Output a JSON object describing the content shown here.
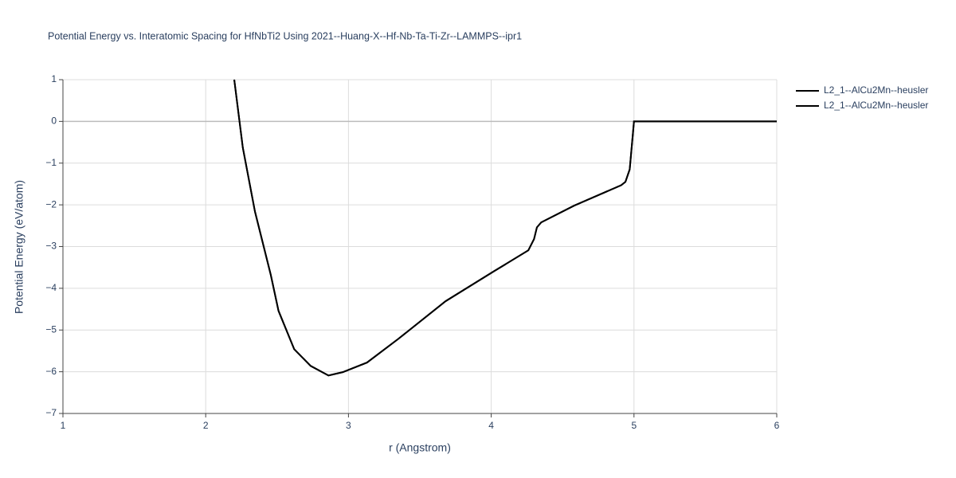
{
  "chart_data": {
    "type": "line",
    "title": "Potential Energy vs. Interatomic Spacing for HfNbTi2 Using 2021--Huang-X--Hf-Nb-Ta-Ti-Zr--LAMMPS--ipr1",
    "x_label": "r (Angstrom)",
    "y_label": "Potential Energy (eV/atom)",
    "xlim": [
      1,
      6
    ],
    "ylim": [
      -7,
      1
    ],
    "xticks": [
      1,
      2,
      3,
      4,
      5,
      6
    ],
    "yticks": [
      {
        "value": -7,
        "label": "−7"
      },
      {
        "value": -6,
        "label": "−6"
      },
      {
        "value": -5,
        "label": "−5"
      },
      {
        "value": -4,
        "label": "−4"
      },
      {
        "value": -3,
        "label": "−3"
      },
      {
        "value": -2,
        "label": "−2"
      },
      {
        "value": -1,
        "label": "−1"
      },
      0,
      1
    ],
    "grid": true,
    "series": [
      {
        "name": "L2_1--AlCu2Mn--heusler",
        "color": "#000000",
        "x": [
          2.2,
          2.26,
          2.345,
          2.456,
          2.51,
          2.62,
          2.735,
          2.86,
          2.96,
          3.13,
          3.35,
          3.68,
          4.02,
          4.26,
          4.3,
          4.32,
          4.35,
          4.58,
          4.91,
          4.94,
          4.97,
          5.0,
          6.0
        ],
        "values": [
          1.0,
          -0.63,
          -2.16,
          -3.68,
          -4.54,
          -5.46,
          -5.86,
          -6.09,
          -6.01,
          -5.78,
          -5.21,
          -4.31,
          -3.59,
          -3.09,
          -2.82,
          -2.54,
          -2.42,
          -2.02,
          -1.53,
          -1.45,
          -1.15,
          0,
          0
        ]
      },
      {
        "name": "L2_1--AlCu2Mn--heusler",
        "color": "#000000",
        "x": [
          2.2,
          2.26,
          2.345,
          2.456,
          2.51,
          2.62,
          2.735,
          2.86,
          2.96,
          3.13,
          3.35,
          3.68,
          4.02,
          4.26,
          4.3,
          4.32,
          4.35,
          4.58,
          4.91,
          4.94,
          4.97,
          5.0,
          6.0
        ],
        "values": [
          1.0,
          -0.63,
          -2.16,
          -3.68,
          -4.54,
          -5.46,
          -5.86,
          -6.09,
          -6.01,
          -5.78,
          -5.21,
          -4.31,
          -3.59,
          -3.09,
          -2.82,
          -2.54,
          -2.42,
          -2.02,
          -1.53,
          -1.45,
          -1.15,
          0,
          0
        ]
      }
    ]
  }
}
